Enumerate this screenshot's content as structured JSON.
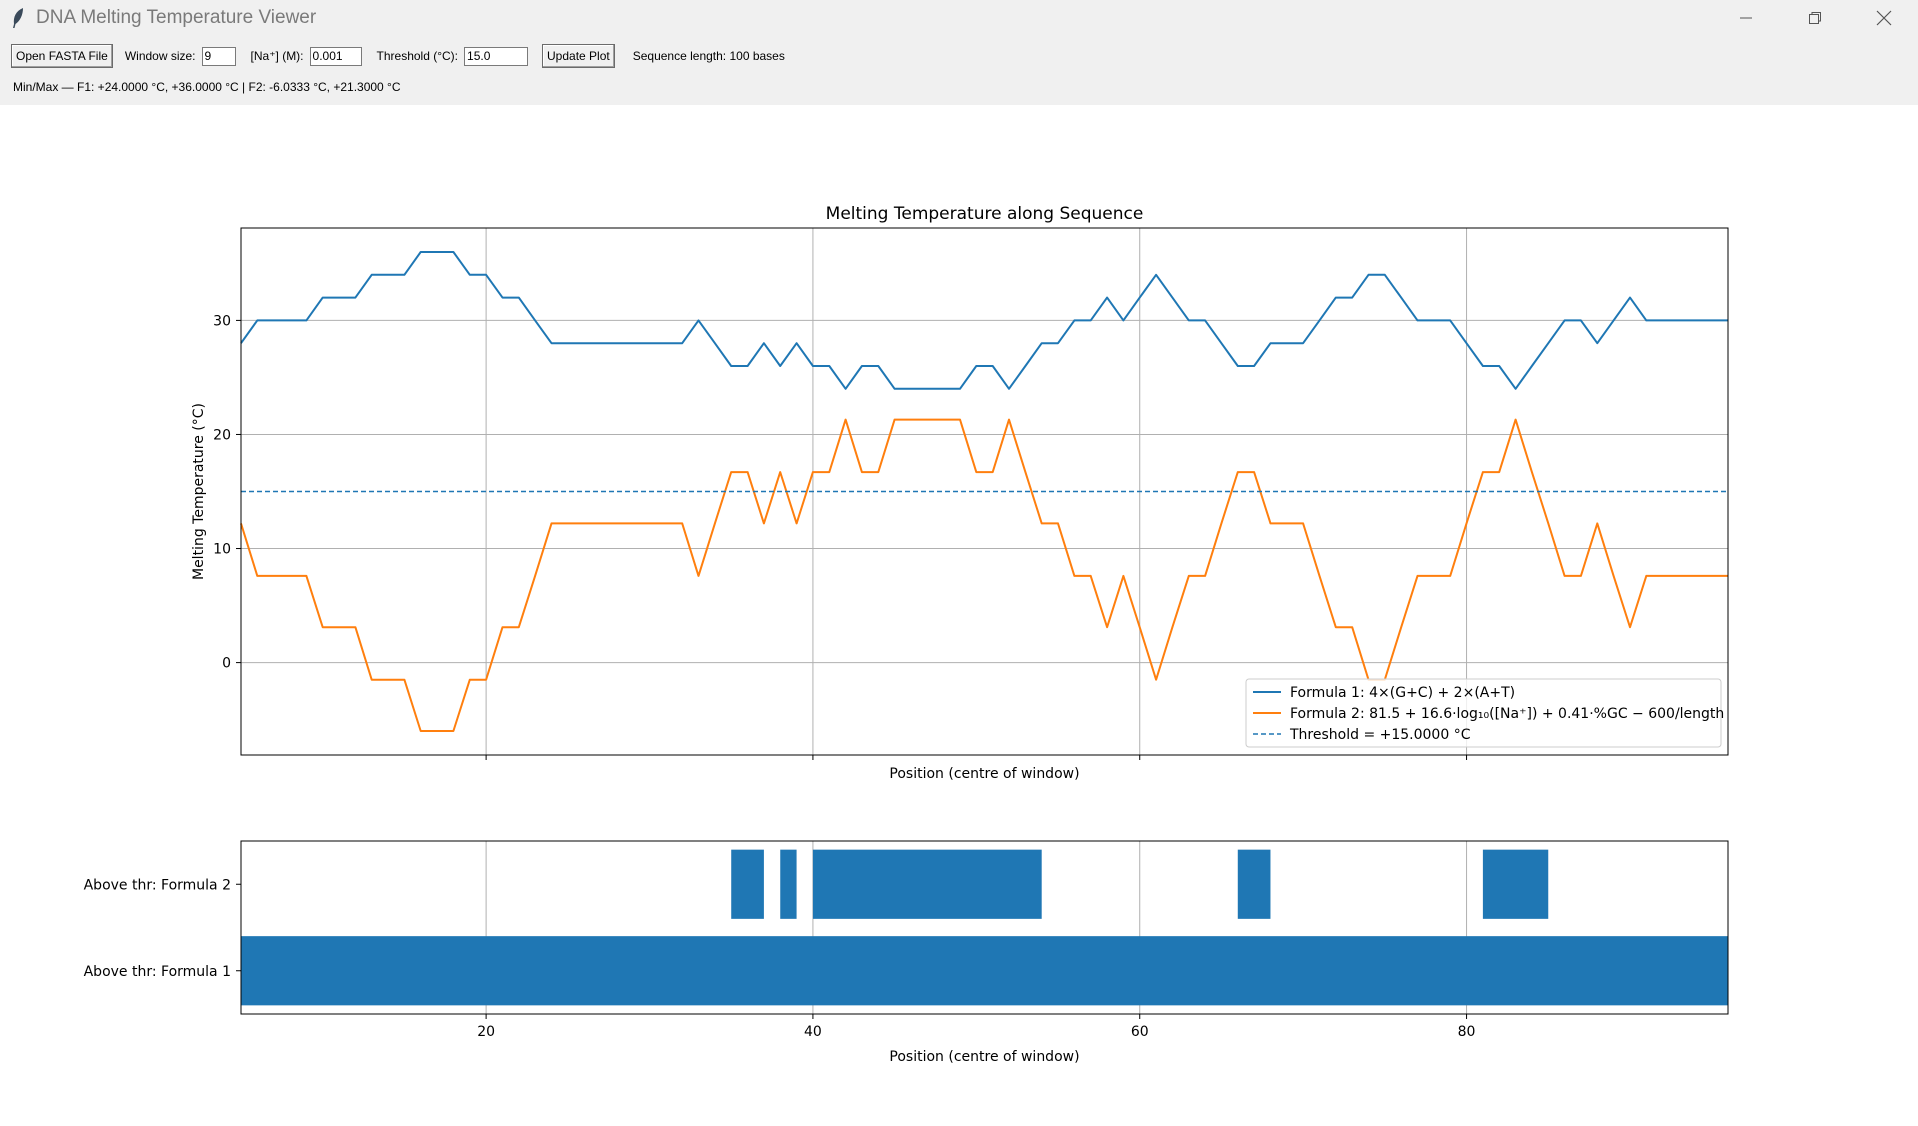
{
  "window": {
    "title": "DNA Melting Temperature Viewer",
    "icons": {
      "app": "feather-icon",
      "minimize": "minimize-icon",
      "maximize": "restore-icon",
      "close": "close-icon"
    }
  },
  "toolbar": {
    "open_button": "Open FASTA File",
    "window_size_label": "Window size:",
    "window_size_value": "9",
    "na_label": "[Na⁺] (M):",
    "na_value": "0.001",
    "threshold_label": "Threshold (°C):",
    "threshold_value": "15.0",
    "update_button": "Update Plot",
    "sequence_length": "Sequence length: 100 bases",
    "minmax": "Min/Max — F1: +24.0000 °C, +36.0000 °C | F2: -6.0333 °C, +21.3000 °C"
  },
  "colors": {
    "formula1": "#1f77b4",
    "formula2": "#ff7f0e",
    "threshold": "#1f77b4",
    "grid": "#b0b0b0"
  },
  "chart_data": [
    {
      "type": "line",
      "title": "Melting Temperature along Sequence",
      "xlabel": "Position (centre of window)",
      "ylabel": "Melting Temperature (°C)",
      "xlim": [
        5,
        96
      ],
      "ylim": [
        -8.1,
        38.1
      ],
      "yticks": [
        0,
        10,
        20,
        30
      ],
      "xticks": [
        20,
        40,
        60,
        80
      ],
      "grid": true,
      "legend_loc": "lower right",
      "x": [
        5,
        6,
        7,
        8,
        9,
        10,
        11,
        12,
        13,
        14,
        15,
        16,
        17,
        18,
        19,
        20,
        21,
        22,
        23,
        24,
        25,
        26,
        27,
        28,
        29,
        30,
        31,
        32,
        33,
        34,
        35,
        36,
        37,
        38,
        39,
        40,
        41,
        42,
        43,
        44,
        45,
        46,
        47,
        48,
        49,
        50,
        51,
        52,
        53,
        54,
        55,
        56,
        57,
        58,
        59,
        60,
        61,
        62,
        63,
        64,
        65,
        66,
        67,
        68,
        69,
        70,
        71,
        72,
        73,
        74,
        75,
        76,
        77,
        78,
        79,
        80,
        81,
        82,
        83,
        84,
        85,
        86,
        87,
        88,
        89,
        90,
        91,
        92,
        93,
        94,
        95,
        96
      ],
      "series": [
        {
          "name": "Formula 1: 4×(G+C) + 2×(A+T)",
          "style": "solid",
          "values": [
            28,
            30,
            30,
            30,
            30,
            32,
            32,
            32,
            34,
            34,
            34,
            36,
            36,
            36,
            34,
            34,
            32,
            32,
            30,
            28,
            28,
            28,
            28,
            28,
            28,
            28,
            28,
            28,
            30,
            28,
            26,
            26,
            28,
            26,
            28,
            26,
            26,
            24,
            26,
            26,
            24,
            24,
            24,
            24,
            24,
            26,
            26,
            24,
            26,
            28,
            28,
            30,
            30,
            32,
            30,
            32,
            34,
            32,
            30,
            30,
            28,
            26,
            26,
            28,
            28,
            28,
            30,
            32,
            32,
            34,
            34,
            32,
            30,
            30,
            30,
            28,
            26,
            26,
            24,
            26,
            28,
            30,
            30,
            28,
            30,
            32,
            30,
            30,
            30,
            30,
            30,
            30
          ]
        },
        {
          "name": "Formula 2: 81.5 + 16.6·log₁₀([Na⁺]) + 0.41·%GC − 600/length",
          "style": "solid",
          "values": [
            12.2,
            7.6,
            7.6,
            7.6,
            7.6,
            3.1,
            3.1,
            3.1,
            -1.5,
            -1.5,
            -1.5,
            -6.0,
            -6.0,
            -6.0,
            -1.5,
            -1.5,
            3.1,
            3.1,
            7.6,
            12.2,
            12.2,
            12.2,
            12.2,
            12.2,
            12.2,
            12.2,
            12.2,
            12.2,
            7.6,
            12.2,
            16.7,
            16.7,
            12.2,
            16.7,
            12.2,
            16.7,
            16.7,
            21.3,
            16.7,
            16.7,
            21.3,
            21.3,
            21.3,
            21.3,
            21.3,
            16.7,
            16.7,
            21.3,
            16.7,
            12.2,
            12.2,
            7.6,
            7.6,
            3.1,
            7.6,
            3.1,
            -1.5,
            3.1,
            7.6,
            7.6,
            12.2,
            16.7,
            16.7,
            12.2,
            12.2,
            12.2,
            7.6,
            3.1,
            3.1,
            -1.5,
            -1.5,
            3.1,
            7.6,
            7.6,
            7.6,
            12.2,
            16.7,
            16.7,
            21.3,
            16.7,
            12.2,
            7.6,
            7.6,
            12.2,
            7.6,
            3.1,
            7.6,
            7.6,
            7.6,
            7.6,
            7.6,
            7.6
          ]
        },
        {
          "name": "Threshold = +15.0000 °C",
          "style": "dashed",
          "value": 15.0
        }
      ]
    },
    {
      "type": "bar",
      "orientation": "horizontal",
      "xlabel": "Position (centre of window)",
      "xlim": [
        5,
        96
      ],
      "xticks": [
        20,
        40,
        60,
        80
      ],
      "grid": true,
      "categories": [
        "Above thr: Formula 2",
        "Above thr: Formula 1"
      ],
      "ranges": [
        [
          [
            35,
            37
          ],
          [
            38,
            39
          ],
          [
            40,
            54
          ],
          [
            66,
            68
          ],
          [
            81,
            85
          ]
        ],
        [
          [
            5,
            96
          ]
        ]
      ]
    }
  ]
}
